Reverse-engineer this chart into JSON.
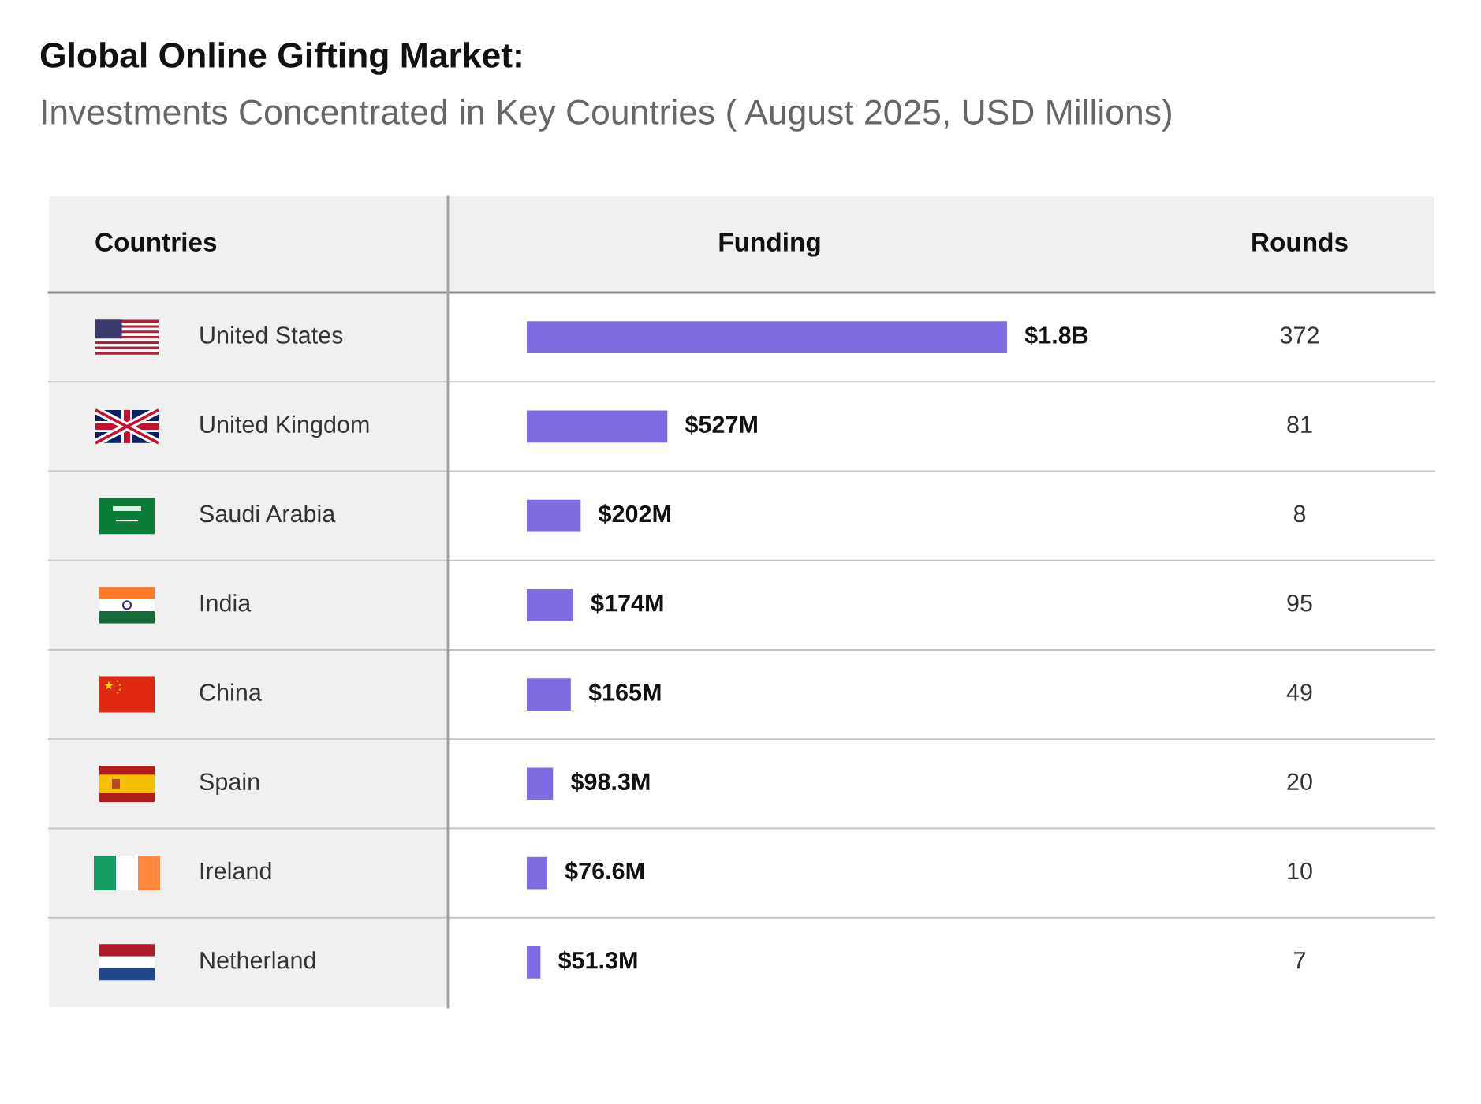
{
  "chart_data": [
    {
      "type": "bar",
      "orientation": "horizontal",
      "title": "Global Online Gifting Market:",
      "subtitle": "Investments Concentrated in Key Countries ( August 2025, USD Millions)",
      "ylabel": "Countries",
      "xlabel": "Funding",
      "categories": [
        "United States",
        "United Kingdom",
        "Saudi Arabia",
        "India",
        "China",
        "Spain",
        "Ireland",
        "Netherland"
      ],
      "color": "#7f6ce0",
      "values": [
        1800000000,
        527000000,
        202000000,
        174000000,
        165000000,
        98300000,
        76600000,
        51300000
      ],
      "value_labels": [
        "$1.8B",
        "$527M",
        "$202M",
        "$174M",
        "$165M",
        "$98.3M",
        "$76.6M",
        "$51.3M"
      ]
    },
    {
      "type": "other",
      "xlabel": "Rounds",
      "categories": [
        null,
        null,
        null,
        null,
        null,
        null,
        null,
        null
      ],
      "values": [
        372,
        81,
        8,
        95,
        49,
        20,
        10,
        7
      ],
      "data_labels": true
    }
  ]
}
